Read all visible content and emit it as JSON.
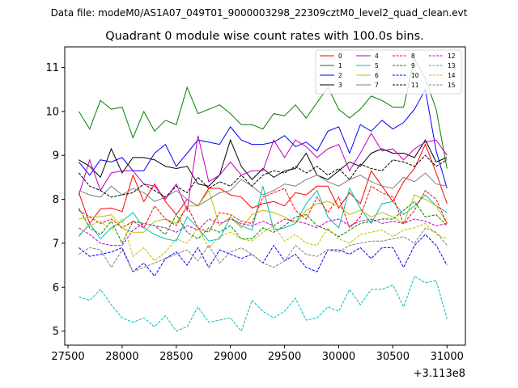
{
  "figure": {
    "suptitle": "Data file: modeM0/AS1A07_049T01_9000003298_22309cztM0_level2_quad_clean.evt"
  },
  "chart_data": {
    "type": "line",
    "title": "Quadrant 0 module wise count rates with 100.0s bins.",
    "xlabel": "",
    "ylabel": "",
    "x_offset_label": "+3.113e8",
    "xlim": [
      27470,
      31170
    ],
    "ylim": [
      4.68,
      11.47
    ],
    "xticks": [
      27500,
      28000,
      28500,
      29000,
      29500,
      30000,
      30500,
      31000
    ],
    "xtick_labels": [
      "27500",
      "28000",
      "28500",
      "29000",
      "29500",
      "30000",
      "30500",
      "31000"
    ],
    "yticks": [
      5,
      6,
      7,
      8,
      9,
      10,
      11
    ],
    "ytick_labels": [
      "5",
      "6",
      "7",
      "8",
      "9",
      "10",
      "11"
    ],
    "grid": false,
    "legend_position": "top-right",
    "x": [
      27600,
      27700,
      27800,
      27900,
      28000,
      28100,
      28200,
      28300,
      28400,
      28500,
      28600,
      28700,
      28800,
      28900,
      29000,
      29100,
      29200,
      29300,
      29400,
      29500,
      29600,
      29700,
      29800,
      29900,
      30000,
      30100,
      30200,
      30300,
      30400,
      30500,
      30600,
      30700,
      30800,
      30900,
      31000
    ],
    "series": [
      {
        "name": "0",
        "color": "#ff0000",
        "dash": "solid",
        "values": [
          8.15,
          7.45,
          7.78,
          7.8,
          7.72,
          8.55,
          7.95,
          8.35,
          7.95,
          7.65,
          8.0,
          7.85,
          8.25,
          8.25,
          8.1,
          8.05,
          7.8,
          7.9,
          7.95,
          7.85,
          8.15,
          8.1,
          8.3,
          8.3,
          7.8,
          8.15,
          7.9,
          8.65,
          8.3,
          7.95,
          8.4,
          8.7,
          9.25,
          8.6,
          7.9
        ]
      },
      {
        "name": "1",
        "color": "#008000",
        "dash": "solid",
        "values": [
          10.0,
          9.6,
          10.25,
          10.05,
          10.1,
          9.4,
          10.0,
          9.55,
          9.8,
          9.7,
          10.55,
          9.95,
          10.05,
          10.15,
          9.95,
          9.7,
          9.7,
          9.6,
          9.95,
          9.9,
          10.15,
          9.85,
          10.2,
          10.55,
          10.05,
          9.85,
          10.05,
          10.35,
          10.25,
          10.1,
          10.1,
          11.2,
          10.75,
          10.05,
          8.7
        ]
      },
      {
        "name": "2",
        "color": "#0000ff",
        "dash": "solid",
        "values": [
          8.85,
          8.55,
          8.9,
          8.85,
          8.95,
          8.65,
          8.65,
          9.05,
          9.25,
          8.75,
          9.05,
          9.35,
          9.3,
          9.25,
          9.65,
          9.35,
          9.25,
          9.25,
          9.3,
          9.45,
          9.2,
          9.3,
          9.1,
          9.55,
          9.65,
          9.05,
          9.7,
          9.55,
          9.8,
          9.6,
          9.75,
          10.05,
          10.5,
          9.1,
          8.25
        ]
      },
      {
        "name": "3",
        "color": "#000000",
        "dash": "solid",
        "values": [
          8.9,
          8.75,
          8.5,
          9.15,
          8.6,
          8.95,
          8.95,
          8.9,
          8.75,
          8.7,
          8.75,
          8.35,
          8.3,
          8.55,
          9.35,
          8.75,
          8.45,
          8.7,
          8.5,
          8.65,
          8.7,
          9.05,
          8.55,
          8.45,
          8.65,
          8.85,
          8.75,
          9.05,
          9.15,
          9.05,
          9.05,
          8.95,
          9.35,
          8.85,
          8.95
        ]
      },
      {
        "name": "4",
        "color": "#bf00bf",
        "dash": "solid",
        "values": [
          8.1,
          8.9,
          8.2,
          8.6,
          8.65,
          8.65,
          8.35,
          8.3,
          8.0,
          8.35,
          7.75,
          9.45,
          8.4,
          8.55,
          8.85,
          8.55,
          8.65,
          8.65,
          9.35,
          8.95,
          9.35,
          9.2,
          8.95,
          9.15,
          9.25,
          8.65,
          9.05,
          9.5,
          9.1,
          9.15,
          8.9,
          9.15,
          9.3,
          9.35,
          9.0
        ]
      },
      {
        "name": "5",
        "color": "#00bfbf",
        "dash": "solid",
        "values": [
          7.15,
          7.45,
          7.1,
          7.35,
          7.5,
          7.7,
          7.35,
          7.2,
          7.1,
          7.05,
          7.6,
          7.35,
          7.05,
          7.1,
          7.6,
          7.4,
          7.3,
          8.3,
          7.3,
          7.35,
          7.45,
          7.9,
          8.2,
          7.6,
          7.35,
          8.25,
          7.8,
          7.45,
          7.9,
          7.95,
          7.65,
          7.85,
          8.1,
          7.85,
          7.7
        ]
      },
      {
        "name": "6",
        "color": "#bfbf00",
        "dash": "solid",
        "values": [
          7.55,
          7.6,
          7.6,
          7.65,
          7.35,
          7.25,
          7.25,
          7.5,
          7.55,
          7.45,
          7.85,
          7.85,
          8.2,
          7.4,
          7.6,
          7.35,
          7.65,
          7.75,
          7.7,
          7.6,
          7.45,
          7.75,
          7.9,
          7.95,
          7.85,
          7.65,
          7.75,
          7.6,
          7.7,
          7.6,
          7.45,
          8.1,
          8.0,
          7.85,
          7.45
        ]
      },
      {
        "name": "7",
        "color": "#808080",
        "dash": "solid",
        "values": [
          8.2,
          8.1,
          8.05,
          8.3,
          8.1,
          8.25,
          8.15,
          7.95,
          8.05,
          8.2,
          8.0,
          7.85,
          8.0,
          8.15,
          8.2,
          8.45,
          8.3,
          8.1,
          8.2,
          8.35,
          8.3,
          8.45,
          8.55,
          8.4,
          8.3,
          8.45,
          8.55,
          8.4,
          8.3,
          8.25,
          8.5,
          8.4,
          8.6,
          8.35,
          8.3
        ]
      },
      {
        "name": "8",
        "color": "#ff0000",
        "dash": "dashed",
        "values": [
          7.75,
          7.6,
          7.45,
          7.55,
          7.35,
          7.5,
          7.35,
          7.85,
          7.55,
          7.4,
          7.85,
          7.35,
          7.25,
          7.7,
          7.65,
          7.5,
          7.45,
          8.05,
          8.15,
          8.25,
          7.75,
          7.55,
          8.05,
          7.7,
          8.05,
          7.35,
          7.6,
          8.3,
          8.15,
          8.05,
          7.45,
          7.75,
          8.2,
          8.0,
          7.45
        ]
      },
      {
        "name": "9",
        "color": "#008000",
        "dash": "dashed",
        "values": [
          7.8,
          7.35,
          7.2,
          7.5,
          7.0,
          7.5,
          7.45,
          7.4,
          7.2,
          7.65,
          7.25,
          7.1,
          7.35,
          7.25,
          7.4,
          7.1,
          7.1,
          7.35,
          7.25,
          7.4,
          7.6,
          7.65,
          7.4,
          7.3,
          7.15,
          7.3,
          7.45,
          7.5,
          7.55,
          7.55,
          7.75,
          7.95,
          7.6,
          7.65,
          7.4
        ]
      },
      {
        "name": "10",
        "color": "#0000ff",
        "dash": "dashed",
        "values": [
          6.9,
          6.7,
          6.75,
          6.8,
          6.9,
          6.35,
          6.55,
          6.25,
          6.65,
          6.8,
          6.5,
          6.9,
          6.45,
          6.85,
          6.75,
          6.65,
          6.75,
          6.55,
          6.95,
          6.6,
          6.75,
          6.45,
          6.35,
          6.85,
          6.85,
          6.75,
          6.9,
          6.65,
          6.9,
          6.9,
          6.45,
          6.95,
          7.2,
          6.95,
          6.5
        ]
      },
      {
        "name": "11",
        "color": "#000000",
        "dash": "dashed",
        "values": [
          8.6,
          8.3,
          8.2,
          8.05,
          8.1,
          8.15,
          8.35,
          8.2,
          8.05,
          8.3,
          8.15,
          8.5,
          8.25,
          8.4,
          8.3,
          8.55,
          8.3,
          8.55,
          8.65,
          8.6,
          8.75,
          8.6,
          8.75,
          8.55,
          8.7,
          8.45,
          8.8,
          8.7,
          8.65,
          8.9,
          8.85,
          8.75,
          9.0,
          8.75,
          8.9
        ]
      },
      {
        "name": "12",
        "color": "#bf00bf",
        "dash": "dashed",
        "values": [
          7.35,
          7.2,
          7.0,
          6.95,
          6.95,
          7.3,
          7.45,
          7.4,
          7.35,
          7.25,
          7.4,
          7.3,
          7.55,
          7.45,
          7.55,
          7.45,
          7.4,
          7.5,
          7.4,
          7.55,
          7.5,
          7.45,
          7.35,
          7.5,
          7.55,
          7.4,
          7.5,
          7.55,
          7.45,
          7.5,
          7.45,
          7.55,
          7.5,
          7.4,
          7.45
        ]
      },
      {
        "name": "13",
        "color": "#00bfbf",
        "dash": "dashed",
        "values": [
          5.78,
          5.7,
          5.95,
          5.6,
          5.3,
          5.2,
          5.3,
          5.1,
          5.35,
          5.0,
          5.1,
          5.55,
          5.2,
          5.25,
          5.3,
          5.0,
          5.7,
          5.45,
          5.3,
          5.45,
          5.75,
          5.25,
          5.3,
          5.55,
          5.45,
          5.95,
          5.6,
          5.95,
          5.95,
          6.05,
          5.55,
          6.25,
          6.1,
          6.15,
          5.28
        ]
      },
      {
        "name": "14",
        "color": "#bfbf00",
        "dash": "dashed",
        "values": [
          7.2,
          7.4,
          7.5,
          7.3,
          7.55,
          6.7,
          6.9,
          6.6,
          6.8,
          7.1,
          7.0,
          7.35,
          6.9,
          7.15,
          7.25,
          7.1,
          7.05,
          7.25,
          7.4,
          7.05,
          7.2,
          7.0,
          6.95,
          7.35,
          7.1,
          7.0,
          7.2,
          7.25,
          7.3,
          7.15,
          7.3,
          7.35,
          7.45,
          7.2,
          7.1
        ]
      },
      {
        "name": "15",
        "color": "#808080",
        "dash": "dashed",
        "values": [
          6.75,
          6.9,
          6.85,
          6.45,
          6.85,
          6.35,
          6.45,
          6.55,
          6.65,
          6.75,
          6.85,
          6.6,
          6.95,
          6.55,
          6.8,
          6.9,
          6.75,
          6.55,
          6.45,
          6.6,
          6.95,
          6.75,
          6.7,
          6.85,
          6.8,
          6.95,
          7.0,
          7.05,
          7.05,
          7.1,
          7.15,
          7.0,
          7.35,
          7.25,
          6.95
        ]
      }
    ]
  }
}
